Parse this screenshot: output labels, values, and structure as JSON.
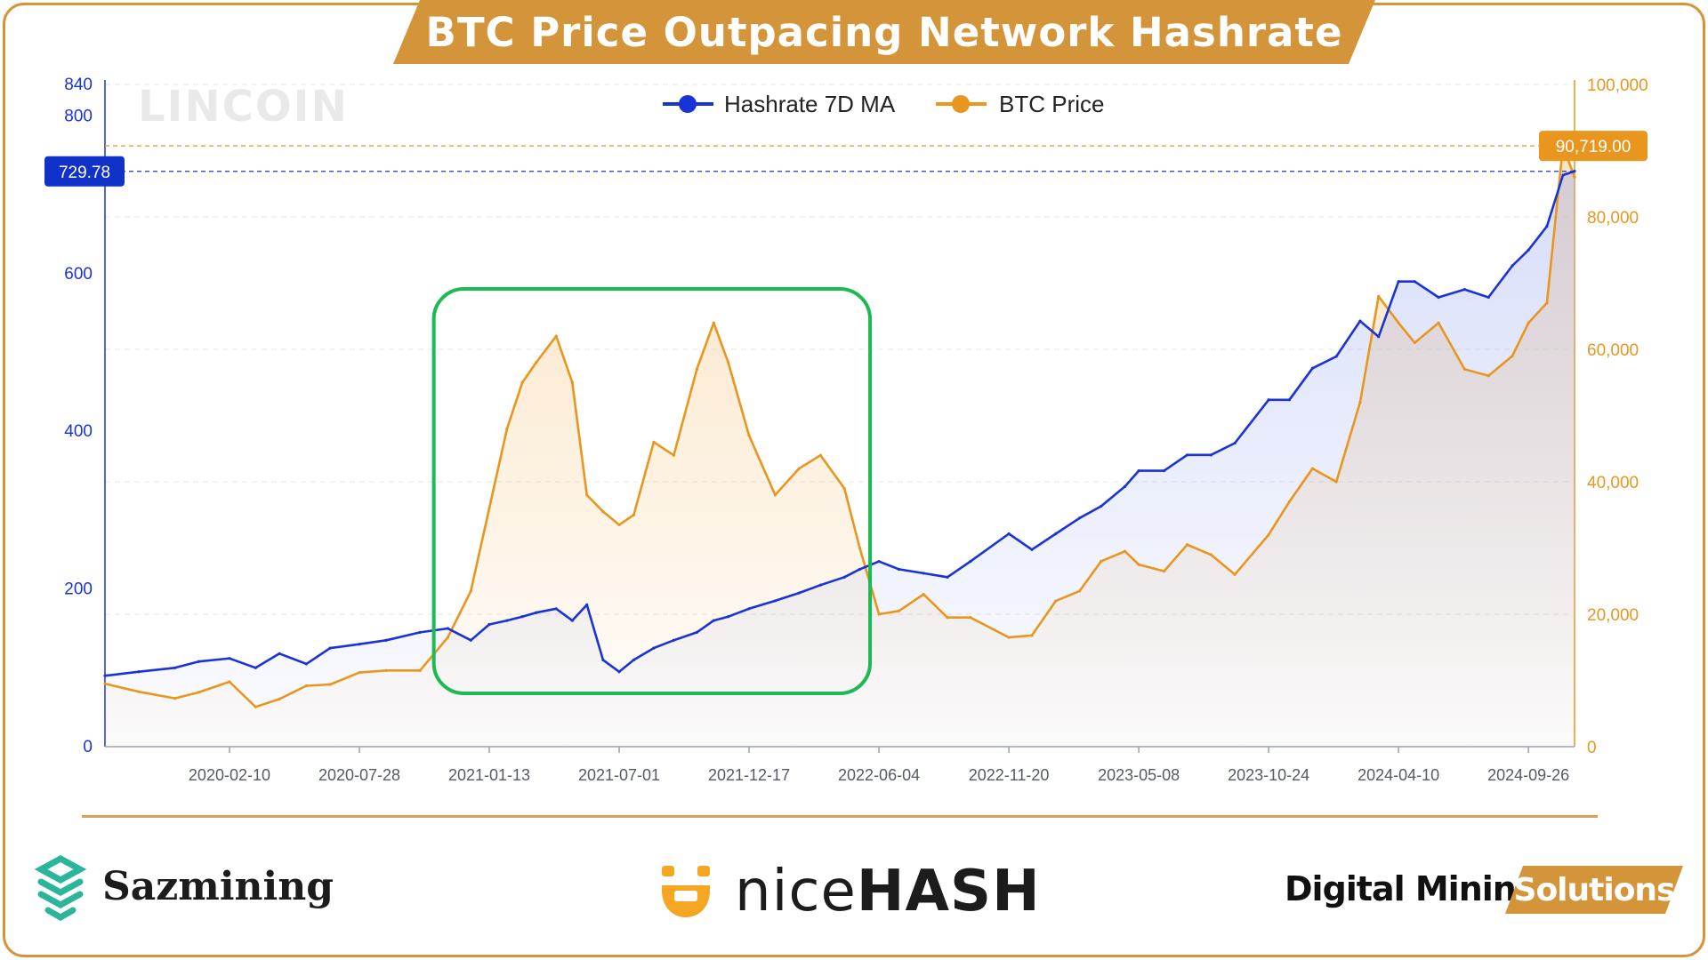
{
  "title": "BTC Price Outpacing Network Hashrate",
  "watermark": "LINCOIN",
  "brands": {
    "left": "Sazmining",
    "center_light": "nice",
    "center_bold": "HASH",
    "right_left": "Digital Mining",
    "right_right": "Solutions"
  },
  "colors": {
    "frame": "#d4943a",
    "hashrate": "#1a33d6",
    "price": "#e8961e",
    "highlight_box": "#1db954",
    "grid": "#e6e6e6"
  },
  "chart_data": {
    "type": "line",
    "title": "",
    "x_dates": [
      "2019-09-01",
      "2019-10-15",
      "2019-12-01",
      "2020-01-01",
      "2020-02-10",
      "2020-03-15",
      "2020-04-15",
      "2020-05-20",
      "2020-06-20",
      "2020-07-28",
      "2020-09-01",
      "2020-10-15",
      "2020-11-20",
      "2020-12-20",
      "2021-01-13",
      "2021-02-05",
      "2021-02-25",
      "2021-03-15",
      "2021-04-10",
      "2021-05-01",
      "2021-05-20",
      "2021-06-10",
      "2021-07-01",
      "2021-07-20",
      "2021-08-15",
      "2021-09-10",
      "2021-10-10",
      "2021-11-01",
      "2021-11-20",
      "2021-12-17",
      "2022-01-20",
      "2022-02-20",
      "2022-03-20",
      "2022-04-20",
      "2022-05-10",
      "2022-06-04",
      "2022-06-30",
      "2022-08-01",
      "2022-09-01",
      "2022-10-01",
      "2022-11-20",
      "2022-12-20",
      "2023-01-20",
      "2023-02-20",
      "2023-03-20",
      "2023-04-20",
      "2023-05-08",
      "2023-06-10",
      "2023-07-10",
      "2023-08-10",
      "2023-09-10",
      "2023-10-24",
      "2023-11-20",
      "2023-12-20",
      "2024-01-20",
      "2024-02-20",
      "2024-03-15",
      "2024-04-10",
      "2024-05-01",
      "2024-06-01",
      "2024-07-05",
      "2024-08-05",
      "2024-09-05",
      "2024-09-26",
      "2024-10-20",
      "2024-11-10",
      "2024-11-25"
    ],
    "series": [
      {
        "name": "Hashrate 7D MA",
        "axis": "left",
        "values": [
          90,
          95,
          100,
          108,
          112,
          100,
          118,
          105,
          125,
          130,
          135,
          145,
          150,
          135,
          155,
          160,
          165,
          170,
          175,
          160,
          180,
          110,
          95,
          110,
          125,
          135,
          145,
          160,
          165,
          175,
          185,
          195,
          205,
          215,
          225,
          235,
          225,
          220,
          215,
          235,
          270,
          250,
          270,
          290,
          305,
          330,
          350,
          350,
          370,
          370,
          385,
          440,
          440,
          480,
          495,
          540,
          520,
          590,
          590,
          570,
          580,
          570,
          610,
          630,
          660,
          725,
          730
        ]
      },
      {
        "name": "BTC Price",
        "axis": "right",
        "values": [
          9500,
          8300,
          7300,
          8200,
          9800,
          6000,
          7200,
          9200,
          9400,
          11200,
          11500,
          11500,
          16500,
          23500,
          36000,
          48000,
          55000,
          58000,
          62000,
          55000,
          38000,
          35500,
          33500,
          35000,
          46000,
          44000,
          57000,
          64000,
          58000,
          47000,
          38000,
          42000,
          44000,
          39000,
          30000,
          20000,
          20500,
          23000,
          19500,
          19500,
          16500,
          16800,
          22000,
          23500,
          28000,
          29500,
          27500,
          26500,
          30500,
          29000,
          26000,
          32000,
          37000,
          42000,
          40000,
          52000,
          68000,
          64000,
          61000,
          64000,
          57000,
          56000,
          59000,
          64000,
          67000,
          90719,
          86000
        ]
      }
    ],
    "x_tick_labels": [
      "2020-02-10",
      "2020-07-28",
      "2021-01-13",
      "2021-07-01",
      "2021-12-17",
      "2022-06-04",
      "2022-11-20",
      "2023-05-08",
      "2023-10-24",
      "2024-04-10",
      "2024-09-26"
    ],
    "y_left_ticks": [
      0,
      200,
      400,
      600,
      800,
      840
    ],
    "y_right_ticks": [
      0,
      20000,
      40000,
      60000,
      80000,
      100000
    ],
    "y_right_tick_labels": [
      "0",
      "20,000",
      "40,000",
      "60,000",
      "80,000",
      "100,000"
    ],
    "ylim_left": [
      0,
      840
    ],
    "ylim_right": [
      0,
      100000
    ],
    "x_range": [
      "2019-09-01",
      "2024-11-25"
    ],
    "legend_position": "top-center",
    "grid": true,
    "annotations": {
      "hashrate_marker": "729.78",
      "price_marker": "90,719.00",
      "highlight_range": [
        "2021-01-01",
        "2022-06-04"
      ]
    }
  }
}
